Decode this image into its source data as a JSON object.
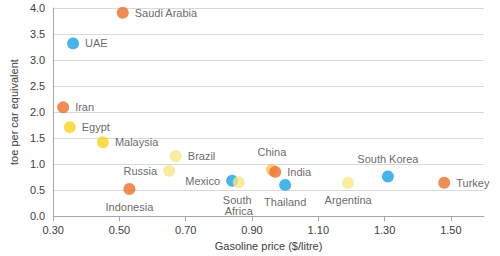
{
  "chart_data": {
    "type": "scatter",
    "x_label": "Gasoline price ($/litre)",
    "y_label": "toe per car equivalent",
    "points": [
      {
        "name": "Saudi Arabia",
        "x": 0.51,
        "y": 3.91,
        "color": "#e8722c"
      },
      {
        "name": "UAE",
        "x": 0.36,
        "y": 3.32,
        "color": "#1ba1e2"
      },
      {
        "name": "Iran",
        "x": 0.33,
        "y": 2.09,
        "color": "#e8722c"
      },
      {
        "name": "Egypt",
        "x": 0.35,
        "y": 1.71,
        "color": "#f5d321"
      },
      {
        "name": "Malaysia",
        "x": 0.45,
        "y": 1.42,
        "color": "#f5d321"
      },
      {
        "name": "Brazil",
        "x": 0.67,
        "y": 1.15,
        "color": "#f7e688"
      },
      {
        "name": "Russia",
        "x": 0.65,
        "y": 0.87,
        "color": "#f7e688"
      },
      {
        "name": "Indonesia",
        "x": 0.53,
        "y": 0.52,
        "color": "#e8722c"
      },
      {
        "name": "Mexico",
        "x": 0.84,
        "y": 0.68,
        "color": "#1ba1e2"
      },
      {
        "name": "South Africa",
        "x": 0.86,
        "y": 0.65,
        "color": "#f7e688"
      },
      {
        "name": "China",
        "x": 0.96,
        "y": 0.89,
        "color": "#f7c25e"
      },
      {
        "name": "India",
        "x": 0.97,
        "y": 0.85,
        "color": "#e8722c"
      },
      {
        "name": "Thailand",
        "x": 1.0,
        "y": 0.6,
        "color": "#1ba1e2"
      },
      {
        "name": "Argentina",
        "x": 1.19,
        "y": 0.64,
        "color": "#f7e688"
      },
      {
        "name": "South Korea",
        "x": 1.31,
        "y": 0.76,
        "color": "#1ba1e2"
      },
      {
        "name": "Turkey",
        "x": 1.48,
        "y": 0.64,
        "color": "#e8722c"
      }
    ],
    "xlim": [
      0.3,
      1.6
    ],
    "xticks": [
      {
        "value": 0.3,
        "label": "0.30"
      },
      {
        "value": 0.5,
        "label": "0.50"
      },
      {
        "value": 0.7,
        "label": "0.70"
      },
      {
        "value": 0.9,
        "label": "0.90"
      },
      {
        "value": 1.1,
        "label": "1.10"
      },
      {
        "value": 1.3,
        "label": "1.30"
      },
      {
        "value": 1.5,
        "label": "1.50"
      }
    ],
    "ylim": [
      0,
      4
    ],
    "yticks": [
      {
        "value": 0,
        "label": "0.0"
      },
      {
        "value": 0.5,
        "label": "0.5"
      },
      {
        "value": 1,
        "label": "1.0"
      },
      {
        "value": 1.5,
        "label": "1.5"
      },
      {
        "value": 2,
        "label": "2.0"
      },
      {
        "value": 2.5,
        "label": "2.5"
      },
      {
        "value": 3,
        "label": "3.0"
      },
      {
        "value": 3.5,
        "label": "3.5"
      },
      {
        "value": 4,
        "label": "4.0"
      }
    ],
    "grid": true,
    "marker": "circle",
    "data_labels": false
  }
}
